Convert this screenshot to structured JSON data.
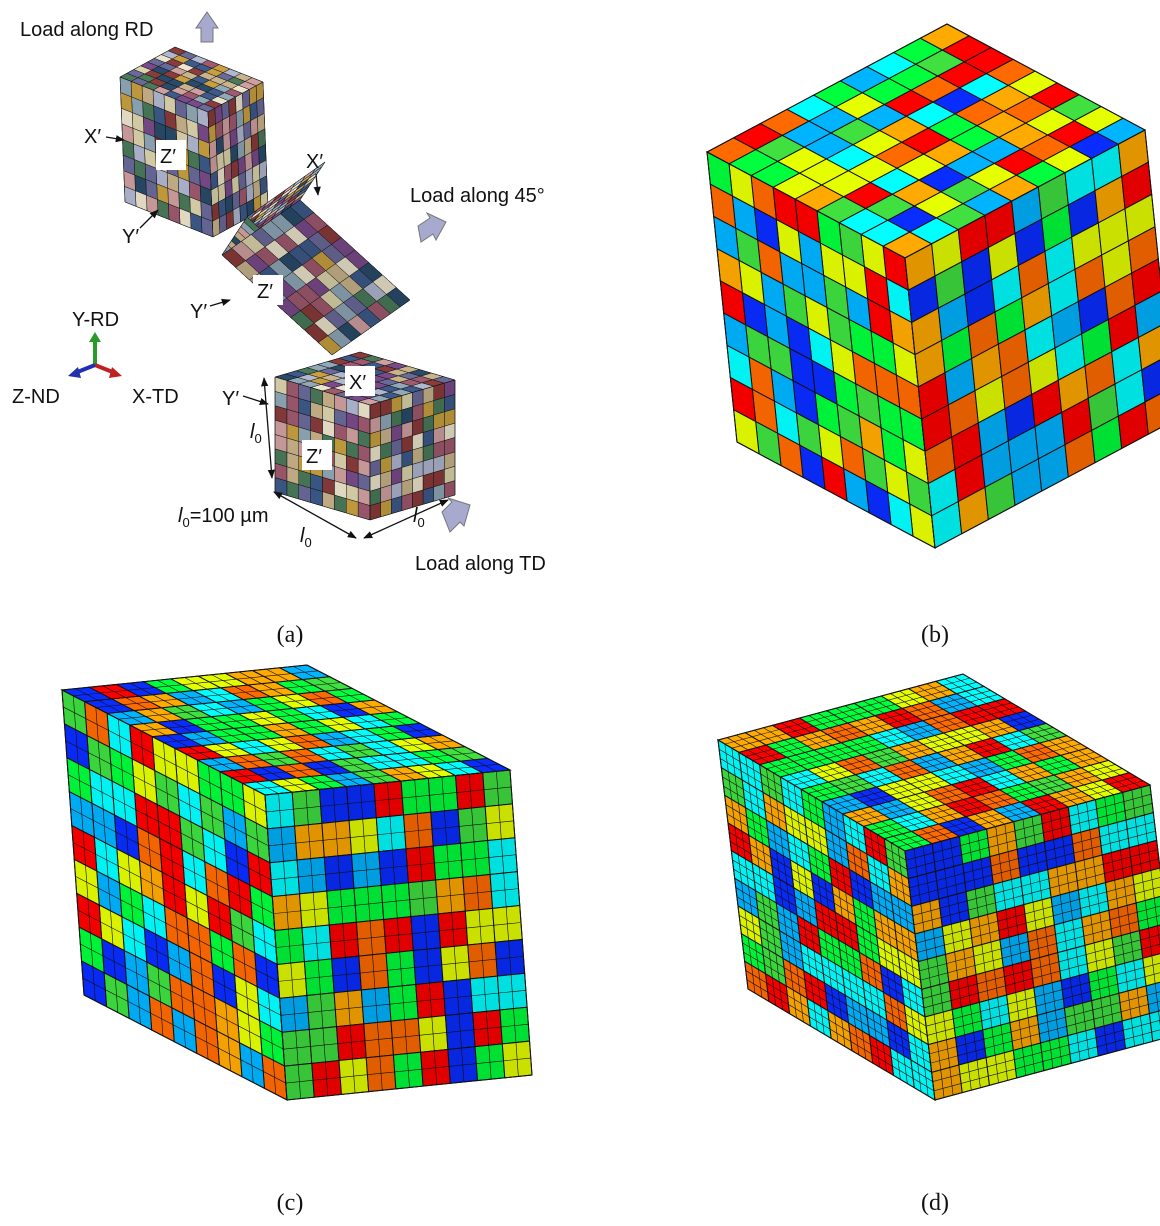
{
  "panel_a": {
    "load_rd": "Load along RD",
    "load_45": "Load along 45°",
    "load_td": "Load along TD",
    "cube1": {
      "x": "X′",
      "y": "Y′",
      "z": "Z′"
    },
    "cube2": {
      "x": "X′",
      "y": "Y′",
      "z": "Z′"
    },
    "cube3": {
      "x": "X′",
      "y": "Y′",
      "z": "Z′"
    },
    "axes": {
      "y": "Y-RD",
      "z": "Z-ND",
      "x": "X-TD"
    },
    "edge": {
      "symbol": "l",
      "subscript": "0"
    },
    "edge_note": {
      "symbol": "l",
      "subscript": "0",
      "text": "=100 µm"
    }
  },
  "captions": {
    "a": "(a)",
    "b": "(b)",
    "c": "(c)",
    "d": "(d)"
  }
}
